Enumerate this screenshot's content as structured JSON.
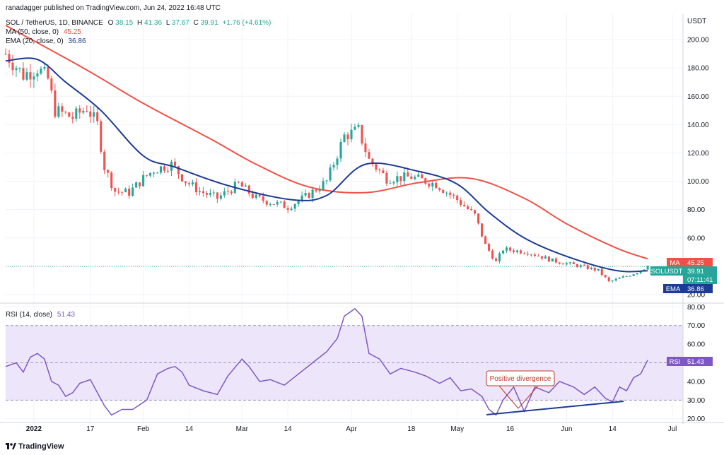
{
  "header": {
    "published": "ranadagger published on TradingView.com, Jun 24, 2022 16:48 UTC",
    "symbol": "SOL / TetherUS, 1D, BINANCE",
    "ohlc": {
      "o_label": "O",
      "o": "38.15",
      "h_label": "H",
      "h": "41.36",
      "l_label": "L",
      "l": "37.67",
      "c_label": "C",
      "c": "39.91",
      "change": "+1.76 (+4.61%)"
    },
    "ma_legend": {
      "label": "MA (50, close, 0)",
      "value": "45.25"
    },
    "ema_legend": {
      "label": "EMA (20, close, 0)",
      "value": "36.86"
    },
    "rsi_legend": {
      "label": "RSI (14, close)",
      "value": "51.43"
    }
  },
  "axis": {
    "currency": "USDT"
  },
  "price_labels": {
    "ma": {
      "name": "MA",
      "value": "45.25"
    },
    "symbol": {
      "name": "SOLUSDT",
      "value": "39.91",
      "countdown": "07:11:41"
    },
    "ema": {
      "name": "EMA",
      "value": "36.86"
    },
    "rsi": {
      "name": "RSI",
      "value": "51.43"
    }
  },
  "annotation": {
    "text": "Positive divergence"
  },
  "footer": {
    "brand": "TradingView"
  },
  "colors": {
    "up": "#26a69a",
    "down": "#ef5350",
    "ma": "#f05045",
    "ema": "#1c3b94",
    "rsi": "#7e57c2",
    "rsi_band": "#ede6fa",
    "trendline": "#1c3b94",
    "annotation": "#c0392b"
  },
  "chart_data": [
    {
      "type": "candlestick",
      "title": "SOL / TetherUS, 1D, BINANCE",
      "ylabel": "USDT",
      "ylim": [
        14,
        218
      ],
      "yticks": [
        20,
        40,
        60,
        80,
        100,
        120,
        140,
        160,
        180,
        200
      ],
      "ytick_labels": [
        "20.00",
        "40.00",
        "60.00",
        "80.00",
        "100.00",
        "120.00",
        "140.00",
        "160.00",
        "180.00",
        "200.00"
      ],
      "xlim": [
        "2021-12-24",
        "2022-07-04"
      ],
      "xticks": [
        "2022-01-01",
        "2022-01-17",
        "2022-02-01",
        "2022-02-14",
        "2022-03-01",
        "2022-03-14",
        "2022-04-01",
        "2022-04-18",
        "2022-05-01",
        "2022-05-16",
        "2022-06-01",
        "2022-06-14",
        "2022-07-01"
      ],
      "xtick_labels": [
        "2022",
        "17",
        "Feb",
        "14",
        "Mar",
        "14",
        "Apr",
        "18",
        "May",
        "16",
        "Jun",
        "14",
        "Jul"
      ],
      "grid": true,
      "close_path": [
        {
          "x": "2021-12-24",
          "y": 190
        },
        {
          "x": "2021-12-29",
          "y": 175
        },
        {
          "x": "2022-01-02",
          "y": 180
        },
        {
          "x": "2022-01-05",
          "y": 172
        },
        {
          "x": "2022-01-07",
          "y": 150
        },
        {
          "x": "2022-01-12",
          "y": 145
        },
        {
          "x": "2022-01-16",
          "y": 152
        },
        {
          "x": "2022-01-19",
          "y": 140
        },
        {
          "x": "2022-01-21",
          "y": 110
        },
        {
          "x": "2022-01-24",
          "y": 93
        },
        {
          "x": "2022-01-28",
          "y": 92
        },
        {
          "x": "2022-02-01",
          "y": 102
        },
        {
          "x": "2022-02-04",
          "y": 108
        },
        {
          "x": "2022-02-09",
          "y": 112
        },
        {
          "x": "2022-02-13",
          "y": 100
        },
        {
          "x": "2022-02-17",
          "y": 93
        },
        {
          "x": "2022-02-22",
          "y": 88
        },
        {
          "x": "2022-02-28",
          "y": 98
        },
        {
          "x": "2022-03-05",
          "y": 88
        },
        {
          "x": "2022-03-14",
          "y": 82
        },
        {
          "x": "2022-03-19",
          "y": 89
        },
        {
          "x": "2022-03-25",
          "y": 100
        },
        {
          "x": "2022-03-30",
          "y": 132
        },
        {
          "x": "2022-04-03",
          "y": 136
        },
        {
          "x": "2022-04-06",
          "y": 115
        },
        {
          "x": "2022-04-11",
          "y": 102
        },
        {
          "x": "2022-04-18",
          "y": 103
        },
        {
          "x": "2022-04-25",
          "y": 98
        },
        {
          "x": "2022-05-01",
          "y": 87
        },
        {
          "x": "2022-05-06",
          "y": 76
        },
        {
          "x": "2022-05-09",
          "y": 55
        },
        {
          "x": "2022-05-12",
          "y": 43
        },
        {
          "x": "2022-05-14",
          "y": 52
        },
        {
          "x": "2022-05-21",
          "y": 50
        },
        {
          "x": "2022-05-28",
          "y": 44
        },
        {
          "x": "2022-06-05",
          "y": 40
        },
        {
          "x": "2022-06-10",
          "y": 37
        },
        {
          "x": "2022-06-13",
          "y": 29
        },
        {
          "x": "2022-06-18",
          "y": 33
        },
        {
          "x": "2022-06-21",
          "y": 36
        },
        {
          "x": "2022-06-24",
          "y": 39.91
        }
      ],
      "series": [
        {
          "name": "MA (50, close, 0)",
          "points": [
            {
              "x": "2021-12-24",
              "y": 210
            },
            {
              "x": "2022-01-15",
              "y": 180
            },
            {
              "x": "2022-02-01",
              "y": 155
            },
            {
              "x": "2022-02-20",
              "y": 130
            },
            {
              "x": "2022-03-05",
              "y": 112
            },
            {
              "x": "2022-03-20",
              "y": 96
            },
            {
              "x": "2022-04-05",
              "y": 92
            },
            {
              "x": "2022-04-20",
              "y": 99
            },
            {
              "x": "2022-05-05",
              "y": 102
            },
            {
              "x": "2022-05-20",
              "y": 88
            },
            {
              "x": "2022-06-01",
              "y": 70
            },
            {
              "x": "2022-06-15",
              "y": 53
            },
            {
              "x": "2022-06-24",
              "y": 45.25
            }
          ]
        },
        {
          "name": "EMA (20, close, 0)",
          "points": [
            {
              "x": "2021-12-24",
              "y": 185
            },
            {
              "x": "2022-01-02",
              "y": 186
            },
            {
              "x": "2022-01-10",
              "y": 170
            },
            {
              "x": "2022-01-20",
              "y": 150
            },
            {
              "x": "2022-02-01",
              "y": 118
            },
            {
              "x": "2022-02-10",
              "y": 110
            },
            {
              "x": "2022-02-25",
              "y": 97
            },
            {
              "x": "2022-03-15",
              "y": 87
            },
            {
              "x": "2022-03-25",
              "y": 90
            },
            {
              "x": "2022-04-05",
              "y": 112
            },
            {
              "x": "2022-04-20",
              "y": 107
            },
            {
              "x": "2022-05-01",
              "y": 98
            },
            {
              "x": "2022-05-10",
              "y": 78
            },
            {
              "x": "2022-05-20",
              "y": 60
            },
            {
              "x": "2022-06-01",
              "y": 47
            },
            {
              "x": "2022-06-15",
              "y": 37
            },
            {
              "x": "2022-06-24",
              "y": 36.86
            }
          ]
        }
      ]
    },
    {
      "type": "line",
      "title": "RSI (14, close)",
      "ylim": [
        18,
        82
      ],
      "yticks": [
        20,
        30,
        40,
        50,
        60,
        70,
        80
      ],
      "ytick_labels": [
        "20.00",
        "30.00",
        "40.00",
        "50.00",
        "60.00",
        "70.00",
        "80.00"
      ],
      "band": [
        30,
        70
      ],
      "midline": 50,
      "series": [
        {
          "name": "RSI (14, close)",
          "points": [
            {
              "x": "2021-12-24",
              "y": 48
            },
            {
              "x": "2021-12-27",
              "y": 50
            },
            {
              "x": "2021-12-29",
              "y": 45
            },
            {
              "x": "2021-12-31",
              "y": 53
            },
            {
              "x": "2022-01-02",
              "y": 55
            },
            {
              "x": "2022-01-04",
              "y": 52
            },
            {
              "x": "2022-01-06",
              "y": 40
            },
            {
              "x": "2022-01-08",
              "y": 38
            },
            {
              "x": "2022-01-10",
              "y": 32
            },
            {
              "x": "2022-01-12",
              "y": 34
            },
            {
              "x": "2022-01-14",
              "y": 39
            },
            {
              "x": "2022-01-17",
              "y": 41
            },
            {
              "x": "2022-01-19",
              "y": 34
            },
            {
              "x": "2022-01-21",
              "y": 27
            },
            {
              "x": "2022-01-23",
              "y": 22
            },
            {
              "x": "2022-01-26",
              "y": 25
            },
            {
              "x": "2022-01-29",
              "y": 25
            },
            {
              "x": "2022-02-02",
              "y": 30
            },
            {
              "x": "2022-02-05",
              "y": 44
            },
            {
              "x": "2022-02-08",
              "y": 47
            },
            {
              "x": "2022-02-10",
              "y": 48
            },
            {
              "x": "2022-02-12",
              "y": 45
            },
            {
              "x": "2022-02-14",
              "y": 38
            },
            {
              "x": "2022-02-18",
              "y": 35
            },
            {
              "x": "2022-02-22",
              "y": 33
            },
            {
              "x": "2022-02-25",
              "y": 43
            },
            {
              "x": "2022-03-01",
              "y": 52
            },
            {
              "x": "2022-03-03",
              "y": 48
            },
            {
              "x": "2022-03-06",
              "y": 40
            },
            {
              "x": "2022-03-09",
              "y": 41
            },
            {
              "x": "2022-03-13",
              "y": 38
            },
            {
              "x": "2022-03-17",
              "y": 44
            },
            {
              "x": "2022-03-21",
              "y": 50
            },
            {
              "x": "2022-03-25",
              "y": 56
            },
            {
              "x": "2022-03-28",
              "y": 63
            },
            {
              "x": "2022-03-30",
              "y": 75
            },
            {
              "x": "2022-04-02",
              "y": 79
            },
            {
              "x": "2022-04-04",
              "y": 75
            },
            {
              "x": "2022-04-06",
              "y": 55
            },
            {
              "x": "2022-04-09",
              "y": 52
            },
            {
              "x": "2022-04-12",
              "y": 44
            },
            {
              "x": "2022-04-15",
              "y": 47
            },
            {
              "x": "2022-04-19",
              "y": 45
            },
            {
              "x": "2022-04-22",
              "y": 43
            },
            {
              "x": "2022-04-26",
              "y": 39
            },
            {
              "x": "2022-04-29",
              "y": 42
            },
            {
              "x": "2022-05-02",
              "y": 35
            },
            {
              "x": "2022-05-05",
              "y": 36
            },
            {
              "x": "2022-05-08",
              "y": 32
            },
            {
              "x": "2022-05-10",
              "y": 25
            },
            {
              "x": "2022-05-12",
              "y": 22
            },
            {
              "x": "2022-05-14",
              "y": 30
            },
            {
              "x": "2022-05-17",
              "y": 37
            },
            {
              "x": "2022-05-20",
              "y": 24
            },
            {
              "x": "2022-05-23",
              "y": 37
            },
            {
              "x": "2022-05-27",
              "y": 34
            },
            {
              "x": "2022-05-30",
              "y": 40
            },
            {
              "x": "2022-06-03",
              "y": 37
            },
            {
              "x": "2022-06-06",
              "y": 33
            },
            {
              "x": "2022-06-09",
              "y": 37
            },
            {
              "x": "2022-06-12",
              "y": 31
            },
            {
              "x": "2022-06-14",
              "y": 29
            },
            {
              "x": "2022-06-16",
              "y": 37
            },
            {
              "x": "2022-06-18",
              "y": 35
            },
            {
              "x": "2022-06-20",
              "y": 42
            },
            {
              "x": "2022-06-22",
              "y": 44
            },
            {
              "x": "2022-06-24",
              "y": 51.43
            }
          ]
        }
      ]
    }
  ]
}
